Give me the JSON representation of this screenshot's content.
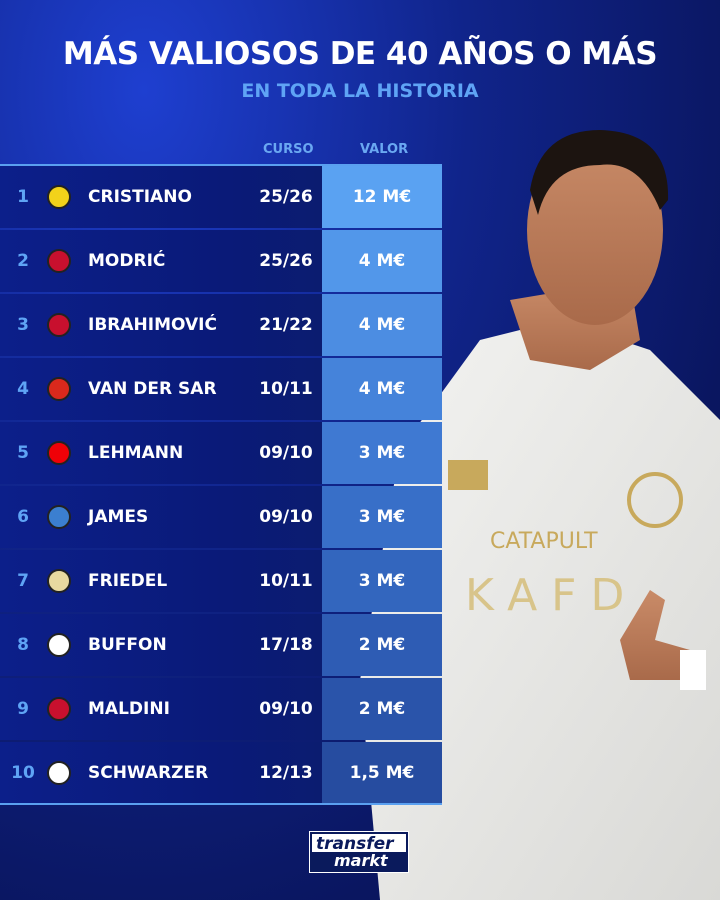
{
  "title": "MÁS VALIOSOS DE 40 AÑOS O MÁS",
  "subtitle": "EN TODA LA HISTORIA",
  "columns": {
    "season": "CURSO",
    "value": "VALOR"
  },
  "rows": [
    {
      "rank": "1",
      "club_icon": "al-nassr-crest-icon",
      "name": "CRISTIANO",
      "season": "25/26",
      "value": "12 M€",
      "color": "#5aa2f2"
    },
    {
      "rank": "2",
      "club_icon": "ac-milan-crest-icon",
      "name": "MODRIĆ",
      "season": "25/26",
      "value": "4 M€",
      "color": "#5297ea"
    },
    {
      "rank": "3",
      "club_icon": "ac-milan-crest-icon",
      "name": "IBRAHIMOVIĆ",
      "season": "21/22",
      "value": "4 M€",
      "color": "#4c8de2"
    },
    {
      "rank": "4",
      "club_icon": "manchester-united-crest-icon",
      "name": "VAN DER SAR",
      "season": "10/11",
      "value": "4 M€",
      "color": "#4583da"
    },
    {
      "rank": "5",
      "club_icon": "arsenal-crest-icon",
      "name": "LEHMANN",
      "season": "09/10",
      "value": "3 M€",
      "color": "#3f79d2"
    },
    {
      "rank": "6",
      "club_icon": "portsmouth-crest-icon",
      "name": "JAMES",
      "season": "09/10",
      "value": "3 M€",
      "color": "#386fc8"
    },
    {
      "rank": "7",
      "club_icon": "aston-villa-crest-icon",
      "name": "FRIEDEL",
      "season": "10/11",
      "value": "3 M€",
      "color": "#3366be"
    },
    {
      "rank": "8",
      "club_icon": "juventus-crest-icon",
      "name": "BUFFON",
      "season": "17/18",
      "value": "2 M€",
      "color": "#2e5cb4"
    },
    {
      "rank": "9",
      "club_icon": "ac-milan-crest-icon",
      "name": "MALDINI",
      "season": "09/10",
      "value": "2 M€",
      "color": "#2a54aa"
    },
    {
      "rank": "10",
      "club_icon": "fulham-crest-icon",
      "name": "SCHWARZER",
      "season": "12/13",
      "value": "1,5 M€",
      "color": "#264ca0"
    }
  ],
  "brand": {
    "line1": "transfer",
    "line2": "markt"
  }
}
